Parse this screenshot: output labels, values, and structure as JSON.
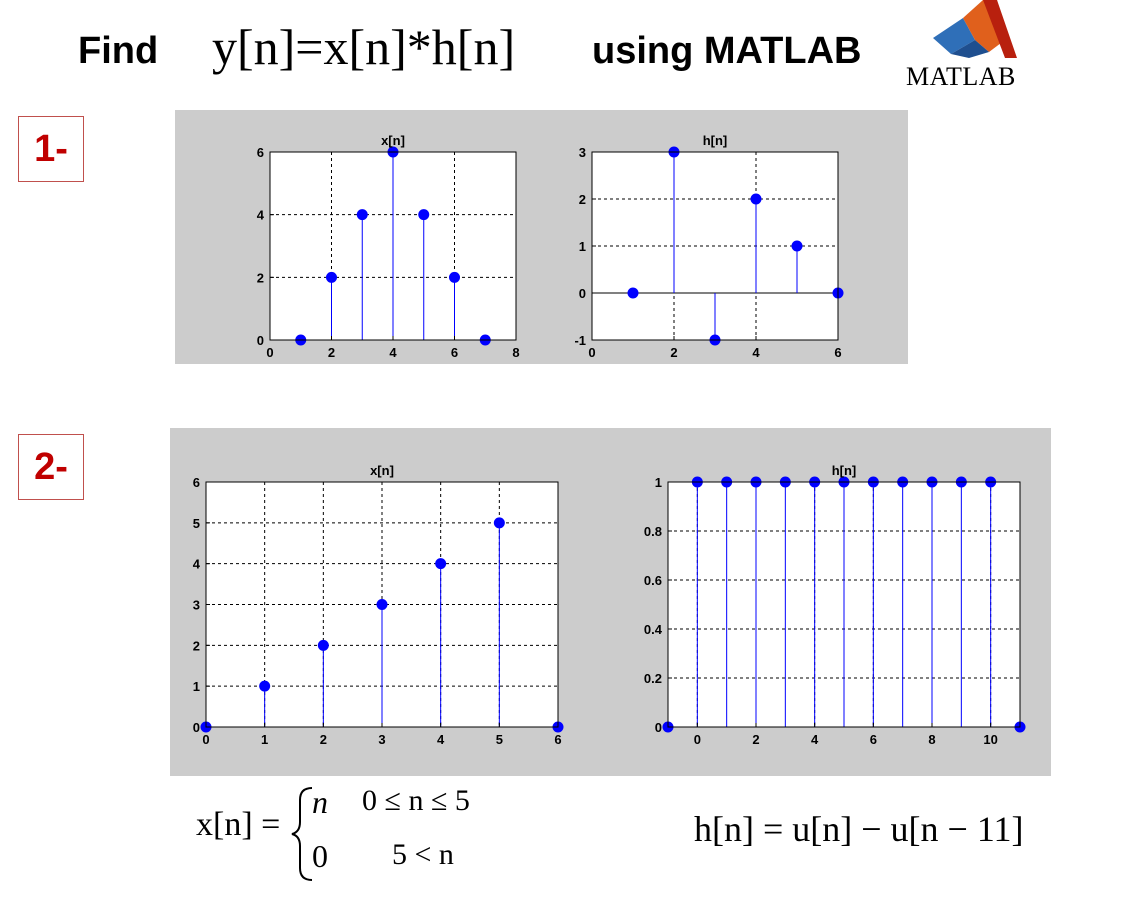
{
  "header": {
    "find_label": "Find",
    "equation": "y[n]=x[n]*h[n]",
    "using_label": "using MATLAB",
    "logo_text": "MATLAB"
  },
  "sections": [
    {
      "badge": "1-"
    },
    {
      "badge": "2-"
    }
  ],
  "formulas": {
    "x_def_lhs": "x[n] =",
    "x_case1_expr": "n",
    "x_case1_cond": "0 ≤ n ≤ 5",
    "x_case2_expr": "0",
    "x_case2_cond": "5 < n",
    "h_def": "h[n] = u[n] − u[n − 11]"
  },
  "colors": {
    "stem": "#0000ff",
    "panel_bg": "#cccccc",
    "badge_text": "#c00000",
    "badge_border": "#c0504d"
  },
  "chart_data": [
    {
      "type": "stem",
      "title": "x[n]",
      "x": [
        1,
        2,
        3,
        4,
        5,
        6,
        7
      ],
      "y": [
        0,
        2,
        4,
        6,
        4,
        2,
        0
      ],
      "xlim": [
        0,
        8
      ],
      "ylim": [
        0,
        6
      ],
      "xticks": [
        0,
        2,
        4,
        6,
        8
      ],
      "yticks": [
        0,
        2,
        4,
        6
      ],
      "grid": true
    },
    {
      "type": "stem",
      "title": "h[n]",
      "x": [
        1,
        2,
        3,
        4,
        5,
        6
      ],
      "y": [
        0,
        3,
        -1,
        2,
        1,
        0
      ],
      "xlim": [
        0,
        6
      ],
      "ylim": [
        -1,
        3
      ],
      "xticks": [
        0,
        2,
        4,
        6
      ],
      "yticks": [
        -1,
        0,
        1,
        2,
        3
      ],
      "grid": true
    },
    {
      "type": "stem",
      "title": "x[n]",
      "x": [
        0,
        1,
        2,
        3,
        4,
        5,
        6
      ],
      "y": [
        0,
        1,
        2,
        3,
        4,
        5,
        0
      ],
      "xlim": [
        0,
        6
      ],
      "ylim": [
        0,
        6
      ],
      "xticks": [
        0,
        1,
        2,
        3,
        4,
        5,
        6
      ],
      "yticks": [
        0,
        1,
        2,
        3,
        4,
        5,
        6
      ],
      "grid": true
    },
    {
      "type": "stem",
      "title": "h[n]",
      "x": [
        -1,
        0,
        1,
        2,
        3,
        4,
        5,
        6,
        7,
        8,
        9,
        10,
        11
      ],
      "y": [
        0,
        1,
        1,
        1,
        1,
        1,
        1,
        1,
        1,
        1,
        1,
        1,
        0
      ],
      "xlim": [
        -1,
        11
      ],
      "ylim": [
        0,
        1
      ],
      "xticks": [
        0,
        2,
        4,
        6,
        8,
        10
      ],
      "yticks": [
        0,
        0.2,
        0.4,
        0.6,
        0.8,
        1
      ],
      "grid": true
    }
  ]
}
